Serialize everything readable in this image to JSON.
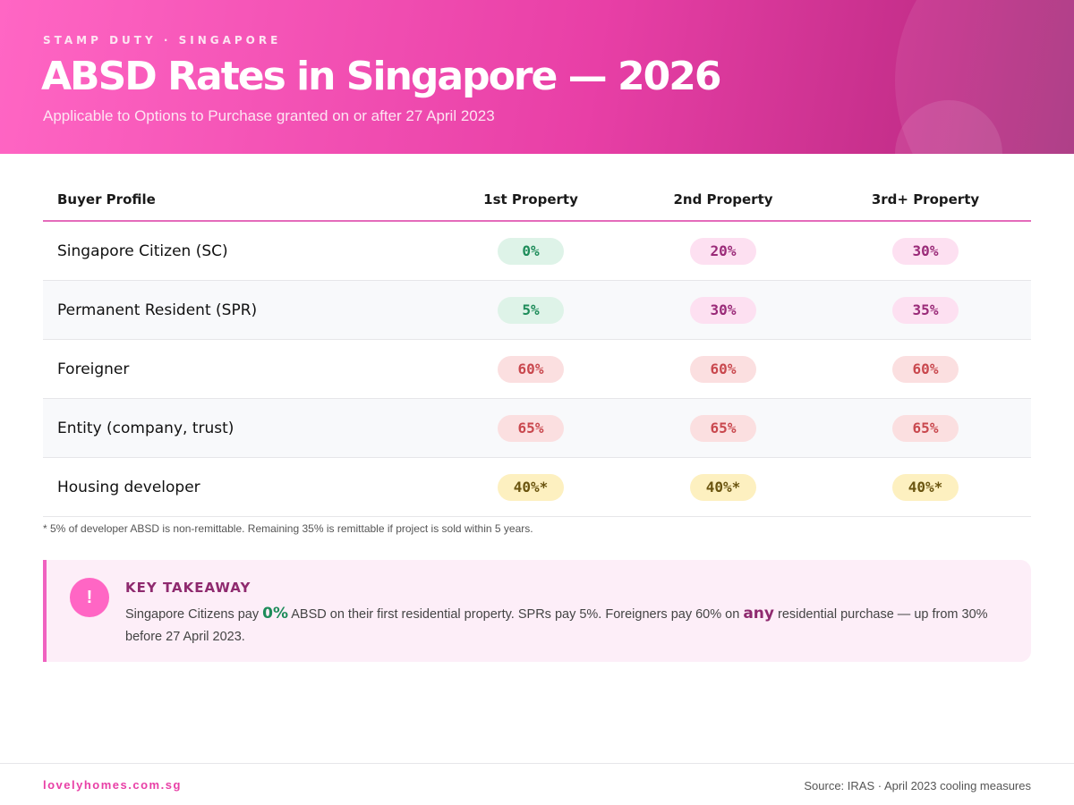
{
  "header": {
    "eyebrow": "STAMP DUTY · SINGAPORE",
    "title": "ABSD Rates in Singapore — 2026",
    "subtitle": "Applicable to Options to Purchase granted on or after 27 April 2023"
  },
  "table": {
    "columns": [
      "Buyer Profile",
      "1st Property",
      "2nd Property",
      "3rd+ Property"
    ],
    "rows": [
      {
        "label": "Singapore Citizen (SC)",
        "values": [
          "0%",
          "20%",
          "30%"
        ],
        "tones": [
          "green",
          "pink",
          "pink"
        ]
      },
      {
        "label": "Permanent Resident (SPR)",
        "values": [
          "5%",
          "30%",
          "35%"
        ],
        "tones": [
          "green",
          "pink",
          "pink"
        ]
      },
      {
        "label": "Foreigner",
        "values": [
          "60%",
          "60%",
          "60%"
        ],
        "tones": [
          "red",
          "red",
          "red"
        ]
      },
      {
        "label": "Entity (company, trust)",
        "values": [
          "65%",
          "65%",
          "65%"
        ],
        "tones": [
          "red",
          "red",
          "red"
        ]
      },
      {
        "label": "Housing developer",
        "values": [
          "40%*",
          "40%*",
          "40%*"
        ],
        "tones": [
          "yellow",
          "yellow",
          "yellow"
        ]
      }
    ],
    "footnote": "* 5% of developer ABSD is non-remittable. Remaining 35% is remittable if project is sold within 5 years."
  },
  "callout": {
    "icon": "exclamation-icon",
    "title": "KEY TAKEAWAY",
    "text_1": "Singapore Citizens pay ",
    "highlight_1": "0%",
    "text_2": " ABSD on their first residential property. SPRs pay 5%. Foreigners pay 60% on ",
    "highlight_2": "any",
    "text_3": " residential purchase — up from 30% before 27 April 2023."
  },
  "footer": {
    "brand": "lovelyhomes.com.sg",
    "source": "Source: IRAS · April 2023 cooling measures"
  },
  "colors": {
    "accent": "#e83fa6",
    "green": "#1e8c5a",
    "pink": "#9a2a78",
    "red": "#c9484e",
    "yellow": "#6b5510"
  }
}
